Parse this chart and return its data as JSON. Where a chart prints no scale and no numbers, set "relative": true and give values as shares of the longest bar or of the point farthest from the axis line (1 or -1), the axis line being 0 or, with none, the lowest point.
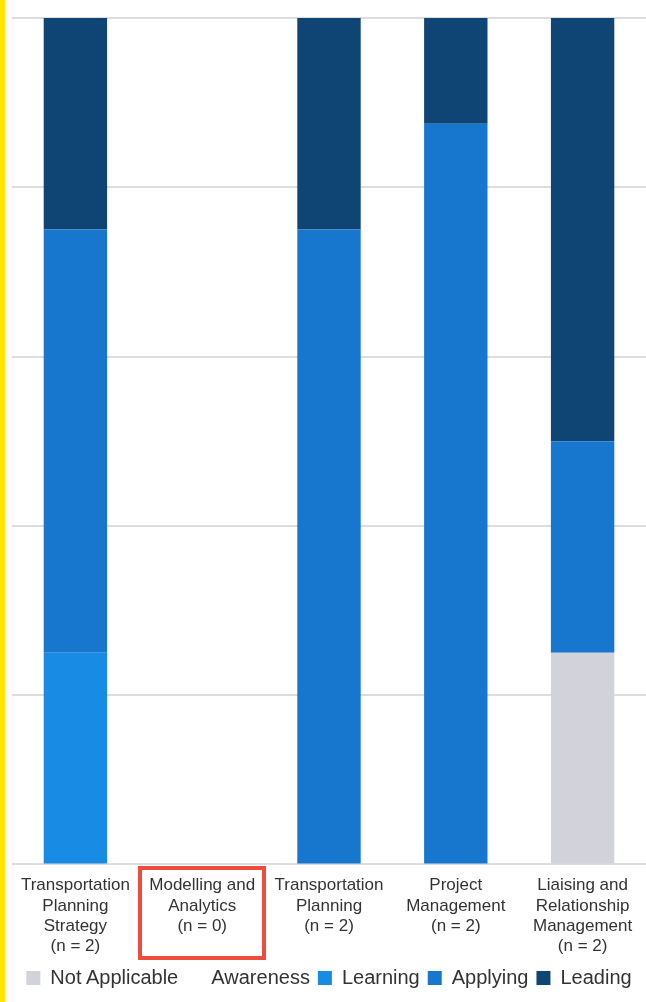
{
  "chart_data": {
    "type": "bar",
    "stacked": true,
    "relative": true,
    "grid": "y",
    "legend": "bottom",
    "categories": [
      "Transportation Planning Strategy (n = 2)",
      "Modelling and Analytics (n = 0)",
      "Transportation Planning (n = 2)",
      "Project Management (n = 2)",
      "Liaising and Relationship Management (n = 2)"
    ],
    "series": [
      {
        "name": "Not Applicable",
        "color": "#d2d2da",
        "values": [
          0,
          0,
          0,
          0,
          0.25
        ]
      },
      {
        "name": "Awareness",
        "values": [
          0,
          0,
          0,
          0,
          0
        ]
      },
      {
        "name": "Learning",
        "color": "#188ce5",
        "values": [
          0.25,
          0,
          0,
          0,
          0
        ]
      },
      {
        "name": "Applying",
        "color": "#1777cf",
        "values": [
          0.5,
          0,
          0.75,
          0.875,
          0.25
        ]
      },
      {
        "name": "Leading",
        "color": "#0f4574",
        "values": [
          0.25,
          0,
          0.25,
          0.125,
          0.5
        ]
      }
    ]
  }
}
